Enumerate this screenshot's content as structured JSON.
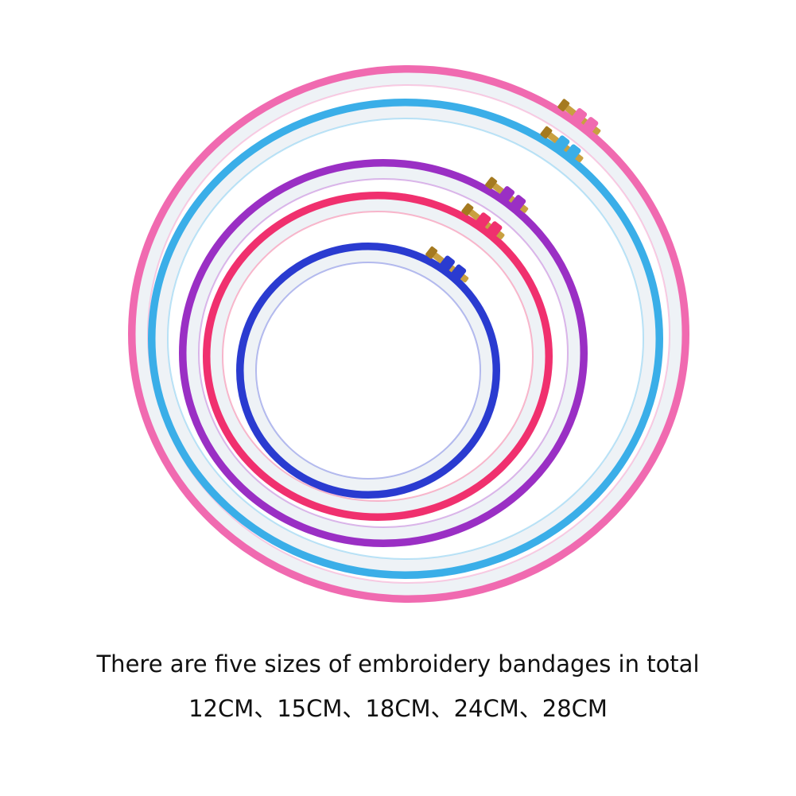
{
  "caption": {
    "line1": "There are five sizes of embroidery bandages in total",
    "line2": "12CM、15CM、18CM、24CM、28CM"
  },
  "hoops": [
    {
      "size": "28CM",
      "color": "#f06ab0"
    },
    {
      "size": "24CM",
      "color": "#3aaee8"
    },
    {
      "size": "18CM",
      "color": "#9a2fc4"
    },
    {
      "size": "15CM",
      "color": "#f0306e"
    },
    {
      "size": "12CM",
      "color": "#2a3bd0"
    }
  ],
  "colors": {
    "hoop_inner": "#eef2f6",
    "brass": "#c9a040"
  }
}
